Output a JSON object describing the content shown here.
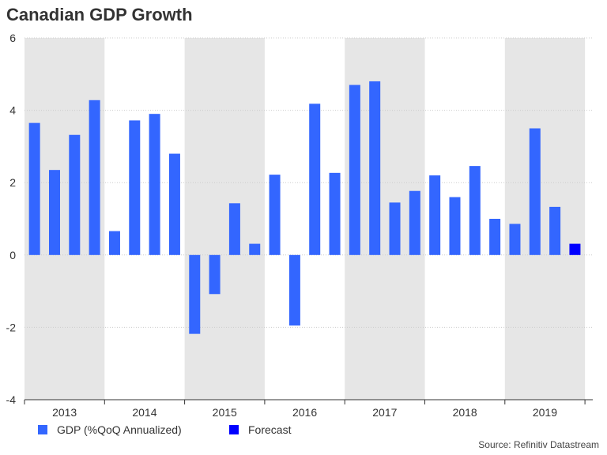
{
  "chart_data": {
    "type": "bar",
    "title": "Canadian GDP Growth",
    "xlabel": "",
    "ylabel": "",
    "ylim": [
      -4,
      6
    ],
    "yticks": [
      "6",
      "4",
      "2",
      "0",
      "-2",
      "-4"
    ],
    "ytick_values": [
      6,
      4,
      2,
      0,
      -2,
      -4
    ],
    "years": [
      "2013",
      "2014",
      "2015",
      "2016",
      "2017",
      "2018",
      "2019"
    ],
    "shaded_years": [
      "2013",
      "2015",
      "2017",
      "2019"
    ],
    "grid": true,
    "legend_position": "bottom-left",
    "series": [
      {
        "name": "GDP (%QoQ Annualized)",
        "color": "#3366ff",
        "values": [
          3.65,
          2.35,
          3.32,
          4.28,
          0.66,
          3.72,
          3.9,
          2.8,
          -2.18,
          -1.08,
          1.43,
          0.31,
          2.22,
          -1.95,
          4.18,
          2.27,
          4.7,
          4.8,
          1.45,
          1.77,
          2.2,
          1.6,
          2.46,
          1.0,
          0.86,
          3.5,
          1.33,
          null
        ]
      },
      {
        "name": "Forecast",
        "color": "#0000ff",
        "values": [
          null,
          null,
          null,
          null,
          null,
          null,
          null,
          null,
          null,
          null,
          null,
          null,
          null,
          null,
          null,
          null,
          null,
          null,
          null,
          null,
          null,
          null,
          null,
          null,
          null,
          null,
          null,
          0.31
        ]
      }
    ]
  },
  "source": "Source: Refinitiv Datastream",
  "colors": {
    "shade": "#e6e6e6",
    "grid": "#cccccc",
    "axis": "#333333"
  }
}
